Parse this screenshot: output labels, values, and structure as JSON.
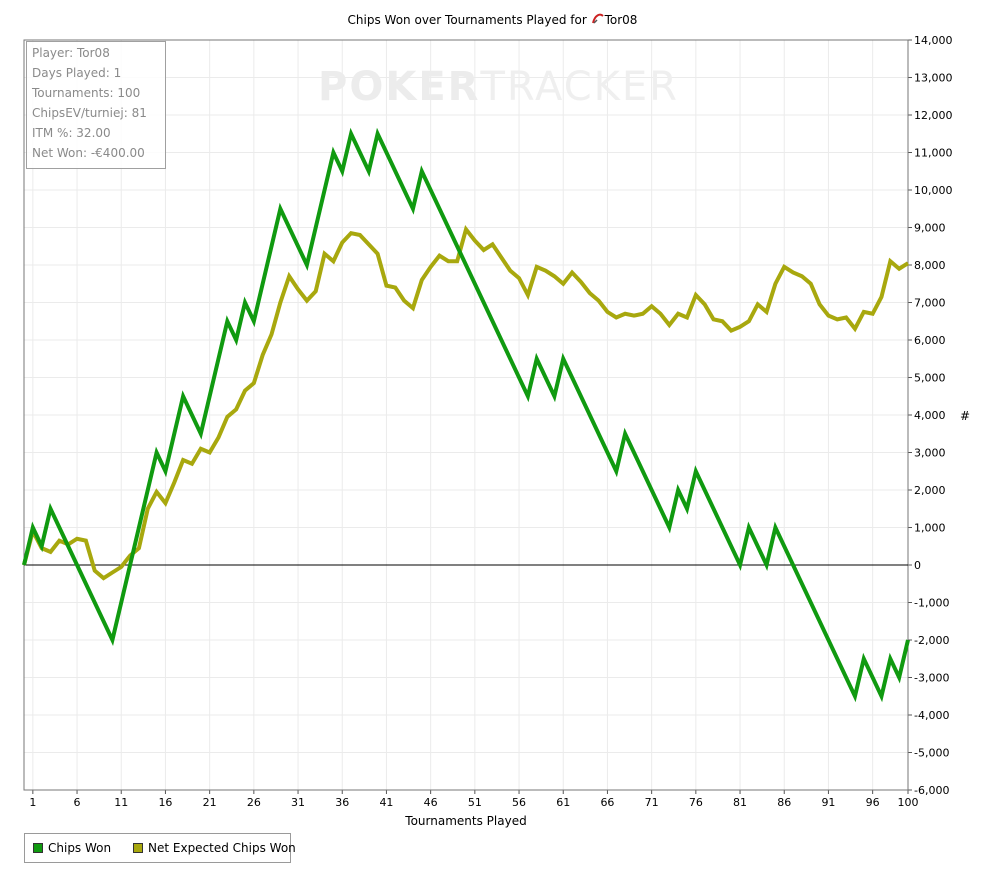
{
  "chart_data": {
    "type": "line",
    "title": "Chips Won over Tournaments Played for",
    "player_name": "Tor08",
    "xlabel": "Tournaments Played",
    "ylabel": "#",
    "xlim": [
      0,
      100
    ],
    "ylim": [
      -6000,
      14000
    ],
    "x_ticks": [
      "1",
      "6",
      "11",
      "16",
      "21",
      "26",
      "31",
      "36",
      "41",
      "46",
      "51",
      "56",
      "61",
      "66",
      "71",
      "76",
      "81",
      "86",
      "91",
      "96",
      "100"
    ],
    "y_ticks": [
      "14,000",
      "13,000",
      "12,000",
      "11,000",
      "10,000",
      "9,000",
      "8,000",
      "7,000",
      "6,000",
      "5,000",
      "4,000",
      "3,000",
      "2,000",
      "1,000",
      "0",
      "-1,000",
      "-2,000",
      "-3,000",
      "-4,000",
      "-5,000",
      "-6,000"
    ],
    "grid": true,
    "legend_position": "bottom-left",
    "series": [
      {
        "name": "Chips Won",
        "color": "#109a10",
        "points": [
          [
            0,
            0
          ],
          [
            1,
            1000
          ],
          [
            2,
            500
          ],
          [
            3,
            1500
          ],
          [
            10,
            -2000
          ],
          [
            15,
            3000
          ],
          [
            16,
            2500
          ],
          [
            18,
            4500
          ],
          [
            20,
            3500
          ],
          [
            23,
            6500
          ],
          [
            24,
            6000
          ],
          [
            25,
            7000
          ],
          [
            26,
            6500
          ],
          [
            29,
            9500
          ],
          [
            32,
            8000
          ],
          [
            35,
            11000
          ],
          [
            36,
            10500
          ],
          [
            37,
            11500
          ],
          [
            39,
            10500
          ],
          [
            40,
            11500
          ],
          [
            44,
            9500
          ],
          [
            45,
            10500
          ],
          [
            57,
            4500
          ],
          [
            58,
            5500
          ],
          [
            60,
            4500
          ],
          [
            61,
            5500
          ],
          [
            67,
            2500
          ],
          [
            68,
            3500
          ],
          [
            73,
            1000
          ],
          [
            74,
            2000
          ],
          [
            75,
            1500
          ],
          [
            76,
            2500
          ],
          [
            81,
            0
          ],
          [
            82,
            1000
          ],
          [
            84,
            0
          ],
          [
            85,
            1000
          ],
          [
            94,
            -3500
          ],
          [
            95,
            -2500
          ],
          [
            97,
            -3500
          ],
          [
            98,
            -2500
          ],
          [
            99,
            -3000
          ],
          [
            100,
            -2000
          ]
        ]
      },
      {
        "name": "Net Expected Chips Won",
        "color": "#a8a80e",
        "points": [
          [
            0,
            0
          ],
          [
            1,
            900
          ],
          [
            2,
            450
          ],
          [
            3,
            350
          ],
          [
            4,
            650
          ],
          [
            5,
            550
          ],
          [
            6,
            700
          ],
          [
            7,
            650
          ],
          [
            8,
            -150
          ],
          [
            9,
            -350
          ],
          [
            10,
            -200
          ],
          [
            11,
            -50
          ],
          [
            12,
            250
          ],
          [
            13,
            450
          ],
          [
            14,
            1500
          ],
          [
            15,
            1950
          ],
          [
            16,
            1650
          ],
          [
            17,
            2200
          ],
          [
            18,
            2800
          ],
          [
            19,
            2700
          ],
          [
            20,
            3100
          ],
          [
            21,
            3000
          ],
          [
            22,
            3400
          ],
          [
            23,
            3950
          ],
          [
            24,
            4150
          ],
          [
            25,
            4650
          ],
          [
            26,
            4850
          ],
          [
            27,
            5600
          ],
          [
            28,
            6150
          ],
          [
            29,
            7000
          ],
          [
            30,
            7700
          ],
          [
            31,
            7350
          ],
          [
            32,
            7050
          ],
          [
            33,
            7300
          ],
          [
            34,
            8300
          ],
          [
            35,
            8100
          ],
          [
            36,
            8600
          ],
          [
            37,
            8850
          ],
          [
            38,
            8800
          ],
          [
            39,
            8550
          ],
          [
            40,
            8300
          ],
          [
            41,
            7450
          ],
          [
            42,
            7400
          ],
          [
            43,
            7050
          ],
          [
            44,
            6850
          ],
          [
            45,
            7600
          ],
          [
            46,
            7950
          ],
          [
            47,
            8250
          ],
          [
            48,
            8100
          ],
          [
            49,
            8100
          ],
          [
            50,
            8950
          ],
          [
            51,
            8650
          ],
          [
            52,
            8400
          ],
          [
            53,
            8550
          ],
          [
            54,
            8200
          ],
          [
            55,
            7850
          ],
          [
            56,
            7650
          ],
          [
            57,
            7200
          ],
          [
            58,
            7950
          ],
          [
            59,
            7850
          ],
          [
            60,
            7700
          ],
          [
            61,
            7500
          ],
          [
            62,
            7800
          ],
          [
            63,
            7550
          ],
          [
            64,
            7250
          ],
          [
            65,
            7050
          ],
          [
            66,
            6750
          ],
          [
            67,
            6600
          ],
          [
            68,
            6700
          ],
          [
            69,
            6650
          ],
          [
            70,
            6700
          ],
          [
            71,
            6900
          ],
          [
            72,
            6700
          ],
          [
            73,
            6400
          ],
          [
            74,
            6700
          ],
          [
            75,
            6600
          ],
          [
            76,
            7200
          ],
          [
            77,
            6950
          ],
          [
            78,
            6550
          ],
          [
            79,
            6500
          ],
          [
            80,
            6250
          ],
          [
            81,
            6350
          ],
          [
            82,
            6500
          ],
          [
            83,
            6950
          ],
          [
            84,
            6750
          ],
          [
            85,
            7500
          ],
          [
            86,
            7950
          ],
          [
            87,
            7800
          ],
          [
            88,
            7700
          ],
          [
            89,
            7500
          ],
          [
            90,
            6950
          ],
          [
            91,
            6650
          ],
          [
            92,
            6550
          ],
          [
            93,
            6600
          ],
          [
            94,
            6300
          ],
          [
            95,
            6750
          ],
          [
            96,
            6700
          ],
          [
            97,
            7150
          ],
          [
            98,
            8100
          ],
          [
            99,
            7900
          ],
          [
            100,
            8050
          ]
        ]
      }
    ]
  },
  "stats": {
    "player": "Player: Tor08",
    "days_played": "Days Played: 1",
    "tournaments": "Tournaments: 100",
    "chips_ev": "ChipsEV/turniej: 81",
    "itm": "ITM %: 32.00",
    "net_won": "Net Won: -€400.00"
  },
  "watermark": {
    "bold": "POKER",
    "light": "TRACKER"
  },
  "legend": {
    "items": [
      {
        "label": "Chips Won",
        "color": "#109a10"
      },
      {
        "label": "Net Expected Chips Won",
        "color": "#a8a80e"
      }
    ]
  }
}
